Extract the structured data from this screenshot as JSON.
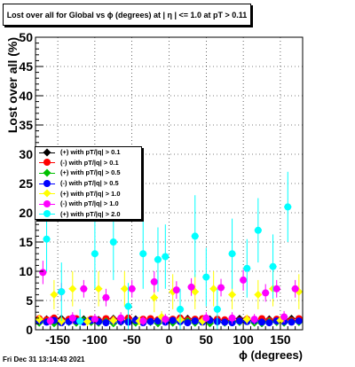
{
  "title": "Lost over all for Global vs ϕ (degrees) at |  η | <= 1.0 at pT > 0.11",
  "footer": "Fri Dec 31 13:14:43 2021",
  "chart_data": {
    "type": "scatter",
    "title": "Lost over all for Global vs ϕ (degrees) at |  η | <= 1.0 at pT > 0.11",
    "xlabel": "ϕ (degrees)",
    "ylabel": "Lost over all (%)",
    "xlim": [
      -180,
      180
    ],
    "ylim": [
      0,
      50
    ],
    "xticks": [
      -150,
      -100,
      -50,
      0,
      50,
      100,
      150
    ],
    "yticks": [
      0,
      5,
      10,
      15,
      20,
      25,
      30,
      35,
      40,
      45,
      50
    ],
    "grid": true,
    "legend_position": "middle-left",
    "series": [
      {
        "name": "(+) with pT/|q| > 0.1",
        "color": "#000000",
        "marker": "diamond",
        "x": [
          -175,
          -165,
          -155,
          -145,
          -135,
          -125,
          -115,
          -105,
          -95,
          -85,
          -75,
          -65,
          -55,
          -45,
          -35,
          -25,
          -15,
          -5,
          5,
          15,
          25,
          35,
          45,
          55,
          65,
          75,
          85,
          95,
          105,
          115,
          125,
          135,
          145,
          155,
          165,
          175
        ],
        "y": [
          1.6,
          1.8,
          1.5,
          1.9,
          1.7,
          1.4,
          1.8,
          1.6,
          1.7,
          1.5,
          1.9,
          1.6,
          1.4,
          1.8,
          1.7,
          1.5,
          1.6,
          1.8,
          1.7,
          1.5,
          1.9,
          1.6,
          1.4,
          1.8,
          1.7,
          1.6,
          1.5,
          1.9,
          1.6,
          1.7,
          1.5,
          1.8,
          1.6,
          1.7,
          1.9,
          1.6
        ]
      },
      {
        "name": "(-) with pT/|q| > 0.1",
        "color": "#ff0000",
        "marker": "circle",
        "x": [
          -175,
          -165,
          -155,
          -145,
          -135,
          -125,
          -115,
          -105,
          -95,
          -85,
          -75,
          -65,
          -55,
          -45,
          -35,
          -25,
          -15,
          -5,
          5,
          15,
          25,
          35,
          45,
          55,
          65,
          75,
          85,
          95,
          105,
          115,
          125,
          135,
          145,
          155,
          165,
          175
        ],
        "y": [
          1.9,
          1.7,
          2.0,
          1.6,
          1.8,
          1.9,
          1.5,
          1.8,
          1.6,
          1.9,
          1.7,
          1.8,
          2.0,
          1.6,
          1.8,
          1.9,
          1.7,
          1.6,
          1.8,
          2.0,
          1.7,
          1.8,
          1.9,
          1.6,
          1.8,
          1.7,
          1.9,
          1.6,
          1.8,
          1.7,
          1.9,
          1.6,
          1.8,
          1.7,
          1.6,
          1.9
        ]
      },
      {
        "name": "(+) with pT/|q| > 0.5",
        "color": "#00c000",
        "marker": "diamond",
        "x": [
          -175,
          -165,
          -155,
          -145,
          -135,
          -125,
          -115,
          -105,
          -95,
          -85,
          -75,
          -65,
          -55,
          -45,
          -35,
          -25,
          -15,
          -5,
          5,
          15,
          25,
          35,
          45,
          55,
          65,
          75,
          85,
          95,
          105,
          115,
          125,
          135,
          145,
          155,
          165,
          175
        ],
        "y": [
          1.2,
          1.4,
          1.1,
          1.5,
          1.3,
          1.2,
          1.6,
          1.3,
          1.2,
          1.4,
          1.1,
          1.3,
          1.5,
          1.2,
          1.4,
          1.3,
          1.1,
          1.4,
          1.2,
          1.3,
          1.5,
          1.2,
          1.4,
          1.1,
          1.3,
          1.2,
          1.4,
          1.3,
          1.5,
          1.2,
          1.1,
          1.4,
          1.3,
          1.2,
          1.4,
          1.3
        ]
      },
      {
        "name": "(-) with pT/|q| > 0.5",
        "color": "#0000ff",
        "marker": "circle",
        "x": [
          -175,
          -165,
          -155,
          -145,
          -135,
          -125,
          -115,
          -105,
          -95,
          -85,
          -75,
          -65,
          -55,
          -45,
          -35,
          -25,
          -15,
          -5,
          5,
          15,
          25,
          35,
          45,
          55,
          65,
          75,
          85,
          95,
          105,
          115,
          125,
          135,
          145,
          155,
          165,
          175
        ],
        "y": [
          1.5,
          1.3,
          1.6,
          1.2,
          1.4,
          1.5,
          1.3,
          1.6,
          1.4,
          1.2,
          1.5,
          1.4,
          1.3,
          1.6,
          1.2,
          1.4,
          1.5,
          1.3,
          1.6,
          1.4,
          1.2,
          1.5,
          1.3,
          1.6,
          1.4,
          1.3,
          1.2,
          1.5,
          1.4,
          1.6,
          1.3,
          1.2,
          1.5,
          1.4,
          1.3,
          1.5
        ]
      },
      {
        "name": "(+) with pT/|q| > 1.0",
        "color": "#ffff00",
        "marker": "diamond",
        "x": [
          -175,
          -155,
          -145,
          -130,
          -110,
          -95,
          -75,
          -60,
          -40,
          -20,
          -10,
          5,
          15,
          35,
          45,
          60,
          85,
          105,
          120,
          140,
          150,
          175
        ],
        "y": [
          1.8,
          6.0,
          1.5,
          7.0,
          1.4,
          7.0,
          1.6,
          7.0,
          1.5,
          5.5,
          2.2,
          6.5,
          1.7,
          6.5,
          1.5,
          7.0,
          6.0,
          1.8,
          6.0,
          7.0,
          1.6,
          6.5
        ],
        "err": [
          0.8,
          2.5,
          0.8,
          3.0,
          0.8,
          3.0,
          0.8,
          3.0,
          0.8,
          2.5,
          1.0,
          3.0,
          0.8,
          3.0,
          0.8,
          3.0,
          2.5,
          0.8,
          2.5,
          3.0,
          0.8,
          3.0
        ]
      },
      {
        "name": "(-) with pT/|q| > 1.0",
        "color": "#ff00ff",
        "marker": "circle",
        "x": [
          -170,
          -160,
          -145,
          -130,
          -115,
          -100,
          -85,
          -65,
          -50,
          -35,
          -20,
          -5,
          10,
          30,
          50,
          70,
          85,
          100,
          115,
          130,
          145,
          155,
          170
        ],
        "y": [
          9.8,
          1.5,
          6.5,
          2.0,
          7.0,
          1.8,
          5.5,
          2.0,
          7.0,
          1.5,
          8.2,
          1.8,
          6.8,
          7.3,
          2.0,
          7.2,
          2.0,
          8.5,
          1.8,
          6.3,
          7.0,
          2.2,
          7.0
        ],
        "err": [
          2.0,
          0.8,
          1.5,
          1.0,
          1.5,
          0.9,
          1.5,
          1.0,
          1.5,
          0.8,
          1.8,
          0.9,
          1.5,
          1.5,
          1.0,
          1.5,
          1.0,
          1.8,
          0.9,
          1.5,
          1.5,
          1.0,
          1.5
        ]
      },
      {
        "name": "(+) with pT/|q| > 2.0",
        "color": "#00ffff",
        "marker": "circle",
        "x": [
          -165,
          -145,
          -120,
          -100,
          -75,
          -55,
          -35,
          -15,
          -5,
          15,
          35,
          50,
          65,
          85,
          105,
          120,
          140,
          160
        ],
        "y": [
          15.5,
          6.5,
          1.5,
          13.0,
          15.0,
          4.0,
          13.0,
          12.0,
          12.5,
          3.5,
          16.0,
          9.0,
          3.5,
          13.0,
          10.5,
          17.0,
          10.8,
          21.0
        ],
        "err": [
          5.5,
          5.0,
          2.0,
          6.0,
          6.5,
          4.0,
          6.0,
          5.5,
          5.5,
          3.5,
          7.0,
          5.0,
          3.5,
          6.0,
          5.0,
          5.5,
          5.5,
          6.0
        ]
      }
    ]
  }
}
